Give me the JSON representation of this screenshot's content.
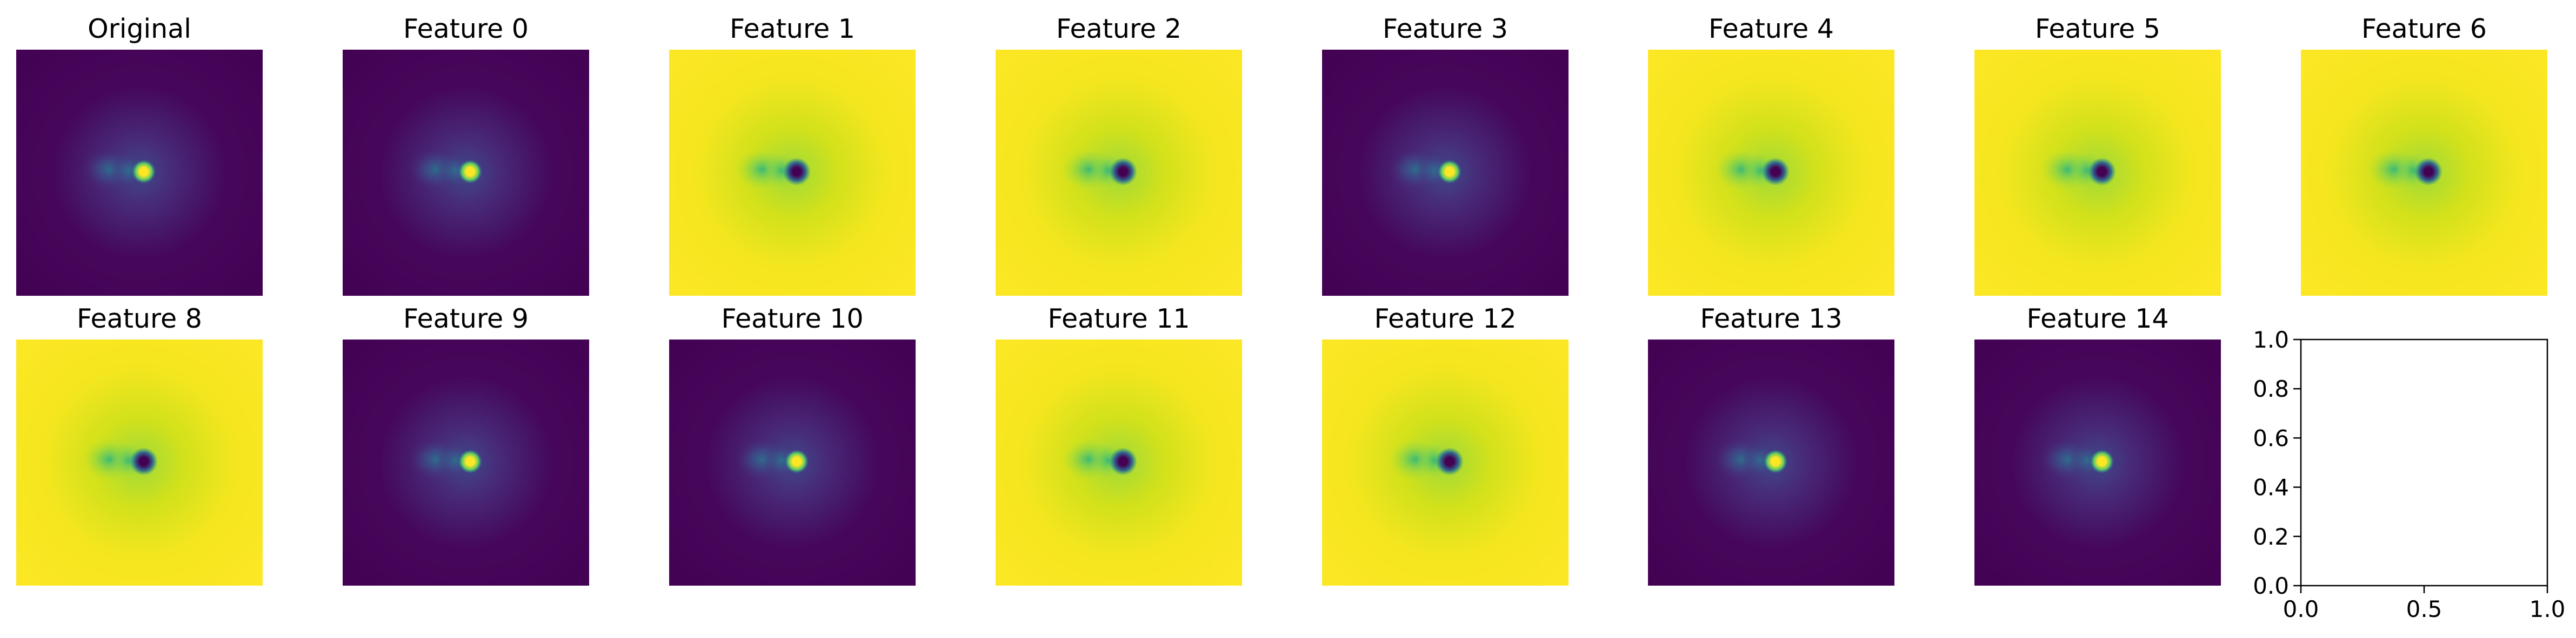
{
  "colormap": "viridis",
  "colors": {
    "viridis_dark": "#440154",
    "viridis_teal": "#21918c",
    "viridis_yellow": "#fde725"
  },
  "chart_data": [
    {
      "type": "heatmap",
      "title": "Original",
      "background": "dark",
      "spot": "bright"
    },
    {
      "type": "heatmap",
      "title": "Feature 0",
      "background": "dark",
      "spot": "bright"
    },
    {
      "type": "heatmap",
      "title": "Feature 1",
      "background": "light",
      "spot": "dark"
    },
    {
      "type": "heatmap",
      "title": "Feature 2",
      "background": "light",
      "spot": "dark"
    },
    {
      "type": "heatmap",
      "title": "Feature 3",
      "background": "dark",
      "spot": "bright"
    },
    {
      "type": "heatmap",
      "title": "Feature 4",
      "background": "light",
      "spot": "dark"
    },
    {
      "type": "heatmap",
      "title": "Feature 5",
      "background": "light",
      "spot": "dark"
    },
    {
      "type": "heatmap",
      "title": "Feature 6",
      "background": "light",
      "spot": "dark"
    },
    {
      "type": "heatmap",
      "title": "Feature 8",
      "background": "light",
      "spot": "dark"
    },
    {
      "type": "heatmap",
      "title": "Feature 9",
      "background": "dark",
      "spot": "bright"
    },
    {
      "type": "heatmap",
      "title": "Feature 10",
      "background": "dark",
      "spot": "bright"
    },
    {
      "type": "heatmap",
      "title": "Feature 11",
      "background": "light",
      "spot": "dark"
    },
    {
      "type": "heatmap",
      "title": "Feature 12",
      "background": "light",
      "spot": "dark"
    },
    {
      "type": "heatmap",
      "title": "Feature 13",
      "background": "dark",
      "spot": "bright"
    },
    {
      "type": "heatmap",
      "title": "Feature 14",
      "background": "dark",
      "spot": "bright"
    },
    {
      "type": "empty",
      "title": "",
      "xlim": [
        0.0,
        1.0
      ],
      "ylim": [
        0.0,
        1.0
      ],
      "xticks": [
        "0.0",
        "0.5",
        "1.0"
      ],
      "yticks": [
        "0.0",
        "0.2",
        "0.4",
        "0.6",
        "0.8",
        "1.0"
      ],
      "grid": false
    }
  ]
}
